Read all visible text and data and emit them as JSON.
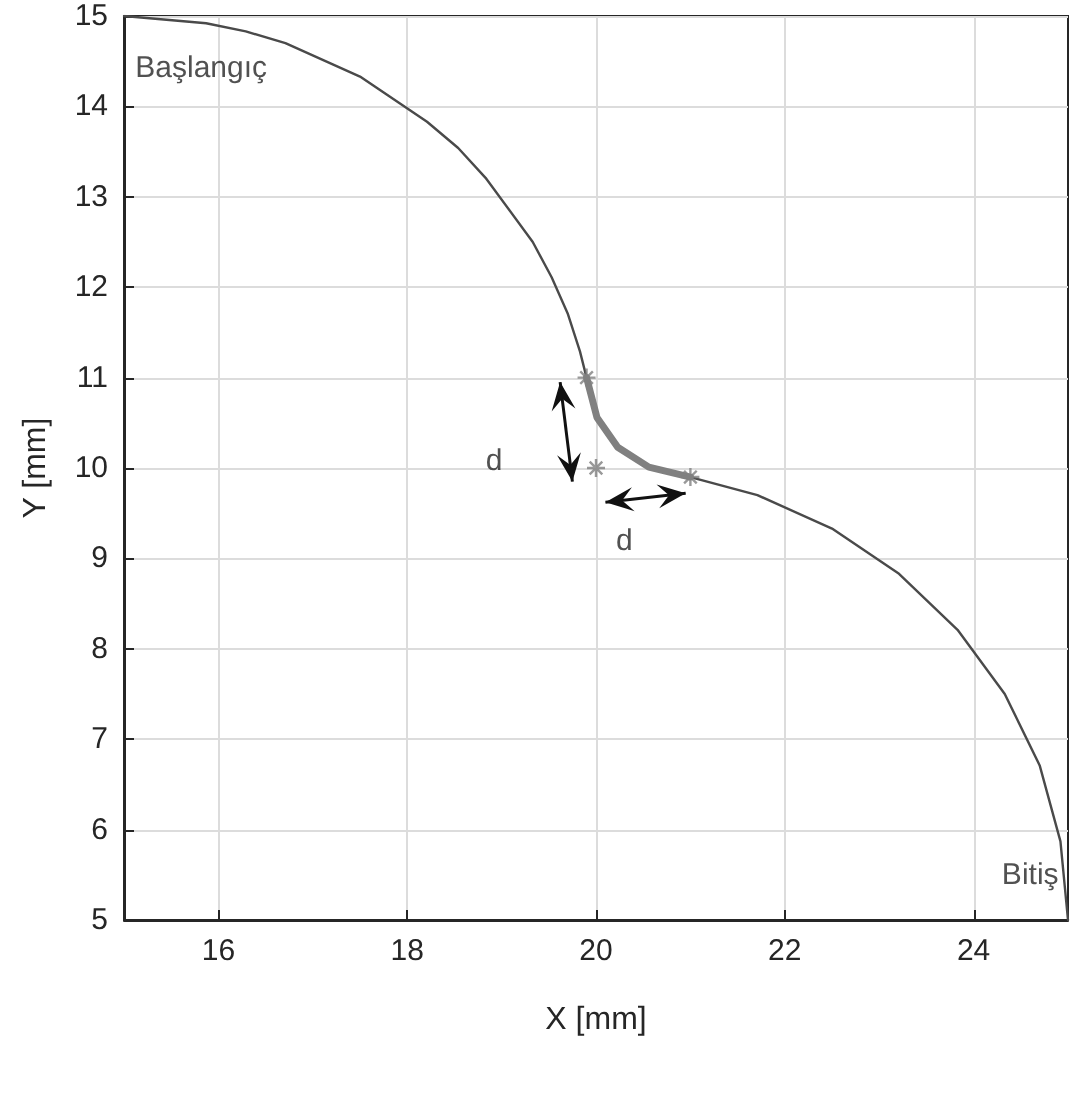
{
  "chart_data": {
    "type": "line",
    "xlabel": "X [mm]",
    "ylabel": "Y [mm]",
    "xlim": [
      15,
      25
    ],
    "xticks": [
      16,
      18,
      20,
      22,
      24
    ],
    "ylim": [
      5,
      15
    ],
    "yticks": [
      5,
      6,
      7,
      8,
      9,
      10,
      11,
      12,
      13,
      14,
      15
    ],
    "grid": true,
    "marker": "none",
    "line_style": "solid",
    "annotations": [
      "Başlangıç",
      "Bitiş",
      "d",
      {
        "text": "d",
        "x": 21,
        "y": 9.9
      }
    ],
    "series": [
      {
        "color": "#4a4a4a",
        "x": [
          15,
          15.87,
          16.29,
          16.71,
          17.5,
          18.21,
          18.54,
          18.83,
          19.33,
          19.53,
          19.7,
          19.83,
          19.9,
          20.01,
          20.23,
          20.56,
          21,
          21.71,
          22.5,
          23.21,
          23.83,
          24.33,
          24.7,
          24.92,
          25
        ],
        "values": [
          15,
          14.92,
          14.83,
          14.7,
          14.33,
          13.83,
          13.54,
          13.21,
          12.5,
          12.11,
          11.71,
          11.29,
          11,
          10.56,
          10.23,
          10.01,
          9.9,
          9.7,
          9.33,
          8.83,
          8.21,
          7.5,
          6.71,
          5.87,
          5
        ]
      },
      {
        "color": "#808080",
        "x": [
          19.9,
          20.01,
          20.23,
          20.56,
          21
        ],
        "values": [
          11,
          10.56,
          10.23,
          10.01,
          9.9
        ]
      },
      {
        "type": "scatter",
        "color": "#808080",
        "marker": "cross",
        "x": [
          19.9,
          20,
          21
        ],
        "values": [
          11,
          10,
          9.9
        ]
      }
    ]
  }
}
